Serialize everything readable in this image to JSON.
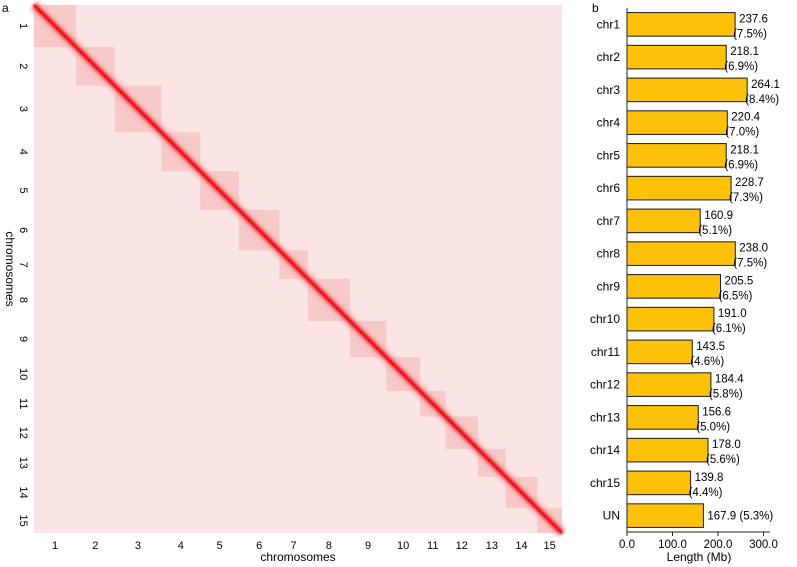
{
  "chart_data": [
    {
      "type": "heatmap",
      "panel_label": "a",
      "xlabel": "chromosomes",
      "ylabel": "chromosomes",
      "chromosomes": [
        "1",
        "2",
        "3",
        "4",
        "5",
        "6",
        "7",
        "8",
        "9",
        "10",
        "11",
        "12",
        "13",
        "14",
        "15"
      ],
      "relative_sizes": [
        237.6,
        218.1,
        264.1,
        220.4,
        218.1,
        228.7,
        160.9,
        238.0,
        205.5,
        191.0,
        143.5,
        184.4,
        156.6,
        178.0,
        139.8
      ],
      "colors": {
        "background": "#fbe4e4",
        "diagonal": "#e8141c",
        "block": "#f6b3b3"
      }
    },
    {
      "type": "bar",
      "orientation": "horizontal",
      "panel_label": "b",
      "categories": [
        "chr1",
        "chr2",
        "chr3",
        "chr4",
        "chr5",
        "chr6",
        "chr7",
        "chr8",
        "chr9",
        "chr10",
        "chr11",
        "chr12",
        "chr13",
        "chr14",
        "chr15",
        "UN"
      ],
      "values": [
        237.6,
        218.1,
        264.1,
        220.4,
        218.1,
        228.7,
        160.9,
        238.0,
        205.5,
        191.0,
        143.5,
        184.4,
        156.6,
        178.0,
        139.8,
        167.9
      ],
      "value_labels": [
        "237.6",
        "218.1",
        "264.1",
        "220.4",
        "218.1",
        "228.7",
        "160.9",
        "238.0",
        "205.5",
        "191.0",
        "143.5",
        "184.4",
        "156.6",
        "178.0",
        "139.8",
        "167.9 (5.3%)"
      ],
      "percent_labels": [
        "(7.5%)",
        "(6.9%)",
        "(8.4%)",
        "(7.0%)",
        "(6.9%)",
        "(7.3%)",
        "(5.1%)",
        "(7.5%)",
        "(6.5%)",
        "(6.1%)",
        "(4.6%)",
        "(5.8%)",
        "(5.0%)",
        "(5.6%)",
        "(4.4%)",
        ""
      ],
      "xlabel": "Length (Mb)",
      "xlim": [
        0,
        300
      ],
      "xticks": [
        0,
        100,
        200,
        300
      ],
      "xtick_labels": [
        "0.0",
        "100.0",
        "200.0",
        "300.0"
      ],
      "colors": {
        "bar": "#fec10a",
        "edge": "#1a1a1a"
      }
    }
  ]
}
